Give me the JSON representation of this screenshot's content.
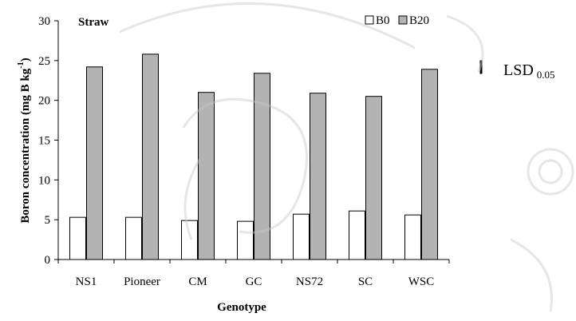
{
  "colors": {
    "b0_fill": "#ffffff",
    "b20_fill": "#b3b3b3",
    "axis": "#000000",
    "watermark": "#c8c8c8"
  },
  "chart_data": {
    "type": "bar",
    "panel_label": "Straw",
    "xlabel": "Genotype",
    "ylabel_main": "Boron concentration (mg B kg",
    "ylabel_sup": "-1",
    "ylabel_end": ")",
    "ylim": [
      0,
      30
    ],
    "yticks": [
      "0",
      "5",
      "10",
      "15",
      "20",
      "25",
      "30"
    ],
    "categories": [
      "NS1",
      "Pioneer",
      "CM",
      "GC",
      "NS72",
      "SC",
      "WSC"
    ],
    "series": [
      {
        "name": "B0",
        "values": [
          5.3,
          5.3,
          4.9,
          4.8,
          5.7,
          6.1,
          5.6
        ]
      },
      {
        "name": "B20",
        "values": [
          24.2,
          25.8,
          21.0,
          23.4,
          20.9,
          20.5,
          23.9
        ]
      }
    ],
    "legend_position": "top-right",
    "grid": false,
    "lsd": {
      "label": "LSD",
      "subscript": "0.05",
      "value": 0.7
    }
  }
}
